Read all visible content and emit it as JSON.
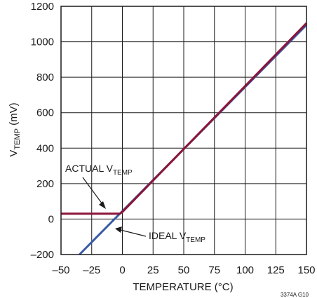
{
  "chart_data": {
    "type": "line",
    "title": "",
    "xlabel": "TEMPERATURE (°C)",
    "ylabel": {
      "main": "V",
      "sub": "TEMP",
      "unit": " (mV)"
    },
    "xlim": [
      -50,
      150
    ],
    "ylim": [
      -200,
      1200
    ],
    "x_ticks": [
      -50,
      -25,
      0,
      25,
      50,
      75,
      100,
      125,
      150
    ],
    "x_tick_labels": [
      "–50",
      "–25",
      "0",
      "25",
      "50",
      "75",
      "100",
      "125",
      "150"
    ],
    "y_ticks": [
      -200,
      0,
      200,
      400,
      600,
      800,
      1000,
      1200
    ],
    "y_tick_labels": [
      "–200",
      "0",
      "200",
      "400",
      "600",
      "800",
      "1000",
      "1200"
    ],
    "grid": true,
    "series": [
      {
        "color": "#3a5aa8",
        "x": [
          -35,
          150
        ],
        "y": [
          -200,
          1095
        ]
      },
      {
        "color": "#8b1538",
        "x": [
          -50,
          -2,
          0,
          150
        ],
        "y": [
          30,
          30,
          40,
          1105
        ]
      }
    ],
    "annotations": {
      "actual": {
        "main": "ACTUAL V",
        "sub": "TEMP"
      },
      "ideal": {
        "main": "IDEAL V",
        "sub": "TEMP"
      }
    },
    "figure_ref": "3374A G10"
  }
}
